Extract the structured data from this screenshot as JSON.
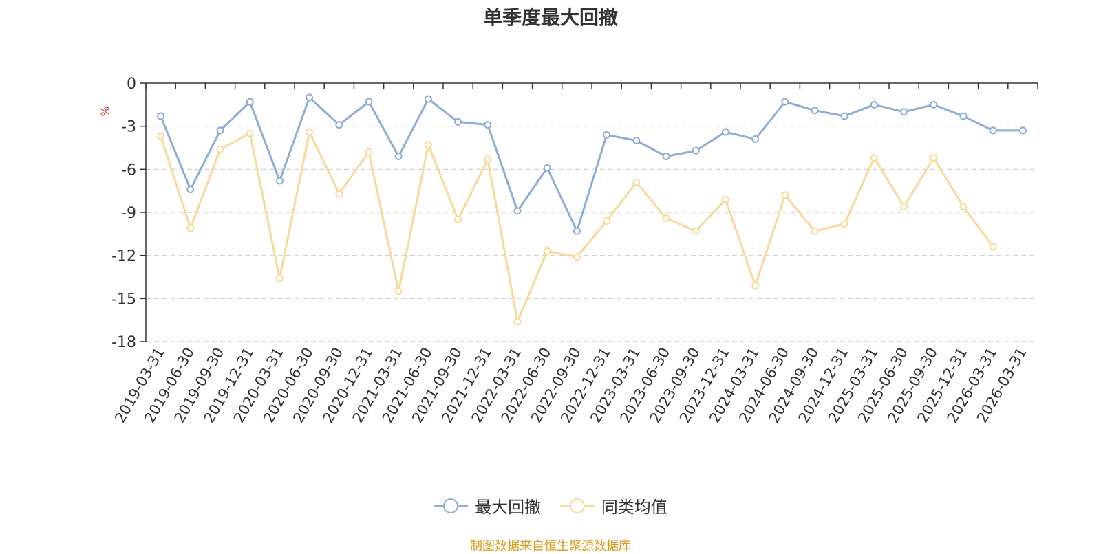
{
  "chart_data": {
    "type": "line",
    "title": "单季度最大回撤",
    "ylabel": "%",
    "xlabel": "",
    "ylim": [
      -18,
      0
    ],
    "yticks": [
      "0",
      "-3",
      "-6",
      "-9",
      "-12",
      "-15",
      "-18"
    ],
    "grid": true,
    "legend_position": "bottom-center",
    "categories": [
      "2019-03-31",
      "2019-06-30",
      "2019-09-30",
      "2019-12-31",
      "2020-03-31",
      "2020-06-30",
      "2020-09-30",
      "2020-12-31",
      "2021-03-31",
      "2021-06-30",
      "2021-09-30",
      "2021-12-31",
      "2022-03-31",
      "2022-06-30",
      "2022-09-30",
      "2022-12-31",
      "2023-03-31",
      "2023-06-30",
      "2023-09-30",
      "2023-12-31",
      "2024-03-31",
      "2024-06-30",
      "2024-09-30",
      "2024-12-31",
      "2025-03-31",
      "2025-06-30",
      "2025-09-30",
      "2025-12-31",
      "2026-03-31",
      "2026-03-31"
    ],
    "series": [
      {
        "name": "最大回撤",
        "color": "#8eacd8",
        "values": [
          -2.3,
          -7.4,
          -3.3,
          -1.3,
          -6.8,
          -1.0,
          -2.9,
          -1.3,
          -5.1,
          -1.1,
          -2.7,
          -2.9,
          -8.9,
          -5.9,
          -10.3,
          -3.6,
          -4.0,
          -5.1,
          -4.7,
          -3.4,
          -3.9,
          -1.3,
          -1.9,
          -2.3,
          -1.5,
          -2.0,
          -1.5,
          -2.3,
          -3.3,
          -3.3
        ]
      },
      {
        "name": "同类均值",
        "color": "#f9d99a",
        "values": [
          -3.7,
          -10.1,
          -4.6,
          -3.5,
          -13.6,
          -3.4,
          -7.7,
          -4.8,
          -14.5,
          -4.3,
          -9.5,
          -5.3,
          -16.6,
          -11.7,
          -12.1,
          -9.6,
          -6.9,
          -9.4,
          -10.3,
          -8.1,
          -14.1,
          -7.8,
          -10.3,
          -9.8,
          -5.2,
          -8.6,
          -5.2,
          -8.6,
          -11.4,
          null
        ]
      }
    ]
  },
  "source_note": "制图数据来自恒生聚源数据库"
}
